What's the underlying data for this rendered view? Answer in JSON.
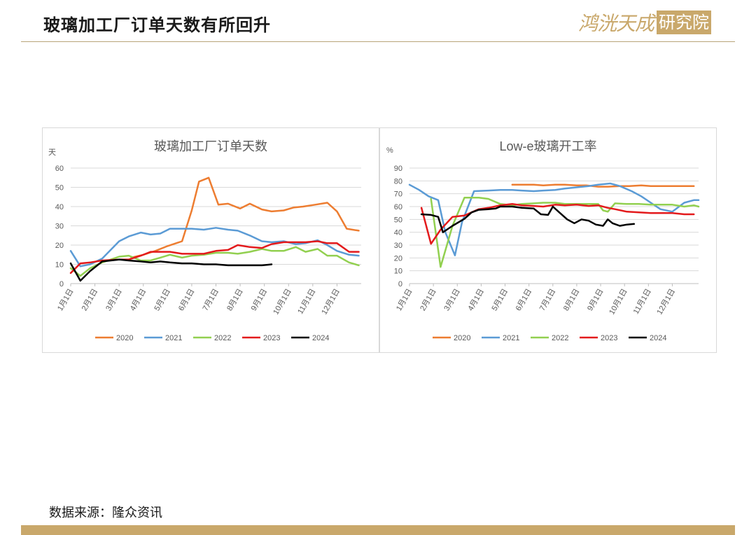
{
  "header": {
    "title": "玻璃加工厂订单天数有所回升",
    "logo_main": "鸿洸天成",
    "logo_box": "研究院"
  },
  "footer": {
    "source": "数据来源：隆众资讯"
  },
  "colors": {
    "2020": "#ed7d31",
    "2021": "#5b9bd5",
    "2022": "#92d050",
    "2023": "#e31a1c",
    "2024": "#000000",
    "accent": "#c9a86b"
  },
  "chart_data": [
    {
      "type": "line",
      "title": "玻璃加工厂订单天数",
      "ylabel": "天",
      "ylim": [
        0,
        60
      ],
      "yticks": [
        0,
        10,
        20,
        30,
        40,
        50,
        60
      ],
      "xticks": [
        "1月1日",
        "2月1日",
        "3月1日",
        "4月1日",
        "5月1日",
        "6月1日",
        "7月1日",
        "8月1日",
        "9月1日",
        "10月1日",
        "11月1日",
        "12月1日"
      ],
      "xlim": [
        1,
        13
      ],
      "legend_position": "bottom",
      "series": [
        {
          "name": "2020",
          "x": [
            3.5,
            4,
            4.5,
            5,
            5.6,
            6,
            6.3,
            6.7,
            7.1,
            7.5,
            8,
            8.4,
            8.9,
            9.3,
            9.8,
            10.2,
            10.6,
            11.1,
            11.6,
            12,
            12.4,
            12.9
          ],
          "y": [
            13.5,
            15,
            17,
            19.5,
            22,
            38,
            53,
            55,
            41,
            41.5,
            39,
            41.5,
            38.5,
            37.5,
            38,
            39.5,
            40,
            41,
            42,
            37.5,
            28.5,
            27.5
          ]
        },
        {
          "name": "2021",
          "x": [
            1,
            1.4,
            1.8,
            2.3,
            3,
            3.4,
            3.9,
            4.3,
            4.7,
            5.1,
            5.6,
            6,
            6.5,
            7,
            7.5,
            7.9,
            8.4,
            8.9,
            9.3,
            9.8,
            10.3,
            10.7,
            11.2,
            11.6,
            12,
            12.5,
            12.9
          ],
          "y": [
            17,
            9,
            10,
            13,
            22,
            24.5,
            26.5,
            25.5,
            26,
            28.5,
            28.5,
            28.5,
            28,
            29,
            28,
            27.5,
            25,
            22,
            21.5,
            22,
            20.5,
            21,
            22.5,
            20,
            17,
            15,
            14.5
          ]
        },
        {
          "name": "2022",
          "x": [
            1,
            1.4,
            1.8,
            2.3,
            3,
            3.4,
            3.9,
            4.3,
            4.7,
            5.1,
            5.6,
            6,
            6.5,
            7,
            7.5,
            7.9,
            8.4,
            8.9,
            9.3,
            9.8,
            10.3,
            10.7,
            11.2,
            11.6,
            12,
            12.5,
            12.9
          ],
          "y": [
            8,
            4,
            8,
            11,
            14,
            14.5,
            12,
            12,
            13.5,
            15,
            13.5,
            14.5,
            15,
            16,
            16,
            15.5,
            16.5,
            18,
            17,
            17,
            19,
            16.5,
            18,
            14.5,
            14.5,
            11,
            9.5
          ]
        },
        {
          "name": "2023",
          "x": [
            1,
            1.4,
            1.8,
            2.3,
            3,
            3.4,
            3.9,
            4.3,
            4.7,
            5.1,
            5.6,
            6,
            6.5,
            7,
            7.5,
            7.9,
            8.4,
            8.9,
            9.3,
            9.8,
            10.3,
            10.7,
            11.2,
            11.6,
            12,
            12.5,
            12.9
          ],
          "y": [
            5.5,
            10.5,
            11,
            12,
            12.5,
            12.5,
            14.5,
            16.5,
            16.5,
            16.5,
            15.5,
            15.5,
            15.5,
            17,
            17.5,
            20,
            19,
            18.5,
            20.5,
            21.5,
            21.5,
            21.5,
            22,
            21,
            21,
            16.5,
            16.5
          ]
        },
        {
          "name": "2024",
          "x": [
            1,
            1.4,
            1.8,
            2.3,
            3,
            3.4,
            3.9,
            4.3,
            4.7,
            5.1,
            5.6,
            6,
            6.5,
            7,
            7.5,
            7.9,
            8.4,
            8.9,
            9.3
          ],
          "y": [
            10.5,
            1.5,
            6.5,
            11.5,
            12.5,
            12,
            11.5,
            11,
            11.5,
            11,
            10.5,
            10.5,
            10,
            10,
            9.5,
            9.5,
            9.5,
            9.5,
            10
          ]
        }
      ]
    },
    {
      "type": "line",
      "title": "Low-e玻璃开工率",
      "ylabel": "%",
      "ylim": [
        0,
        90
      ],
      "yticks": [
        0,
        10,
        20,
        30,
        40,
        50,
        60,
        70,
        80,
        90
      ],
      "xticks": [
        "1月1日",
        "2月1日",
        "3月1日",
        "4月1日",
        "5月1日",
        "6月1日",
        "7月1日",
        "8月1日",
        "9月1日",
        "10月1日",
        "11月1日",
        "12月1日"
      ],
      "xlim": [
        1,
        13.1
      ],
      "legend_position": "bottom",
      "series": [
        {
          "name": "2020",
          "x": [
            5.3,
            5.7,
            6.2,
            6.6,
            7.1,
            7.5,
            8,
            8.4,
            8.9,
            9.3,
            9.8,
            10.2,
            10.7,
            11.1,
            11.6,
            12,
            12.5,
            12.9
          ],
          "y": [
            77,
            77,
            77,
            76.5,
            77,
            77,
            76.5,
            76.5,
            75.5,
            75.5,
            76,
            76,
            76.5,
            76,
            76,
            76,
            76,
            76
          ]
        },
        {
          "name": "2021",
          "x": [
            1,
            1.4,
            1.8,
            2.2,
            2.5,
            2.9,
            3.2,
            3.7,
            4.3,
            4.8,
            5.3,
            5.7,
            6.2,
            6.6,
            7.1,
            7.5,
            8,
            8.5,
            8.9,
            9.4,
            9.8,
            10.3,
            10.7,
            11.1,
            11.5,
            12,
            12.5,
            12.9,
            13.1
          ],
          "y": [
            77,
            73,
            68,
            65,
            40,
            22,
            48,
            72,
            72.5,
            73,
            73,
            72.5,
            72,
            72.5,
            73,
            74,
            75,
            76,
            77,
            78,
            76,
            72,
            68,
            63,
            58,
            56,
            63,
            65,
            65
          ]
        },
        {
          "name": "2022",
          "x": [
            1.9,
            2.3,
            2.8,
            3.3,
            3.9,
            4.3,
            4.8,
            5.3,
            5.7,
            6.2,
            6.6,
            7.1,
            7.5,
            8,
            8.5,
            8.9,
            9.1,
            9.3,
            9.6,
            10.1,
            10.6,
            11.1,
            11.6,
            12,
            12.5,
            12.9,
            13.1
          ],
          "y": [
            66,
            13,
            45,
            67,
            67,
            66,
            62,
            61,
            62,
            62.5,
            63,
            63,
            62,
            62,
            62,
            62,
            57,
            56,
            62.5,
            62,
            62,
            61.5,
            61.5,
            61.5,
            60,
            61,
            60
          ]
        },
        {
          "name": "2023",
          "x": [
            1.5,
            1.9,
            2.3,
            2.8,
            3.3,
            3.9,
            4.3,
            4.8,
            5.3,
            5.7,
            6.2,
            6.6,
            7.1,
            7.5,
            8,
            8.5,
            8.9,
            9.3,
            9.6,
            10.1,
            10.6,
            11.1,
            11.6,
            12,
            12.5,
            12.9
          ],
          "y": [
            59,
            31,
            42,
            52,
            53,
            58,
            59,
            61,
            62,
            61,
            60.5,
            60,
            61.5,
            61,
            61.5,
            60.5,
            61,
            59,
            58,
            56,
            55.5,
            55,
            55,
            55,
            54,
            54
          ]
        },
        {
          "name": "2024",
          "x": [
            1.5,
            1.9,
            2.2,
            2.4,
            2.8,
            3.3,
            3.6,
            3.9,
            4.3,
            4.6,
            4.8,
            5.3,
            5.7,
            6.2,
            6.5,
            6.8,
            7,
            7.3,
            7.6,
            7.9,
            8.2,
            8.5,
            8.8,
            9.1,
            9.3,
            9.5,
            9.8,
            10.1,
            10.4
          ],
          "y": [
            54,
            53.5,
            52,
            40,
            45,
            50.5,
            55.5,
            57.5,
            58,
            58.5,
            60,
            60,
            59,
            58.5,
            54,
            53.5,
            60,
            55,
            50,
            47,
            50,
            49,
            46,
            45,
            50,
            47,
            45,
            46,
            46.5
          ]
        }
      ]
    }
  ]
}
